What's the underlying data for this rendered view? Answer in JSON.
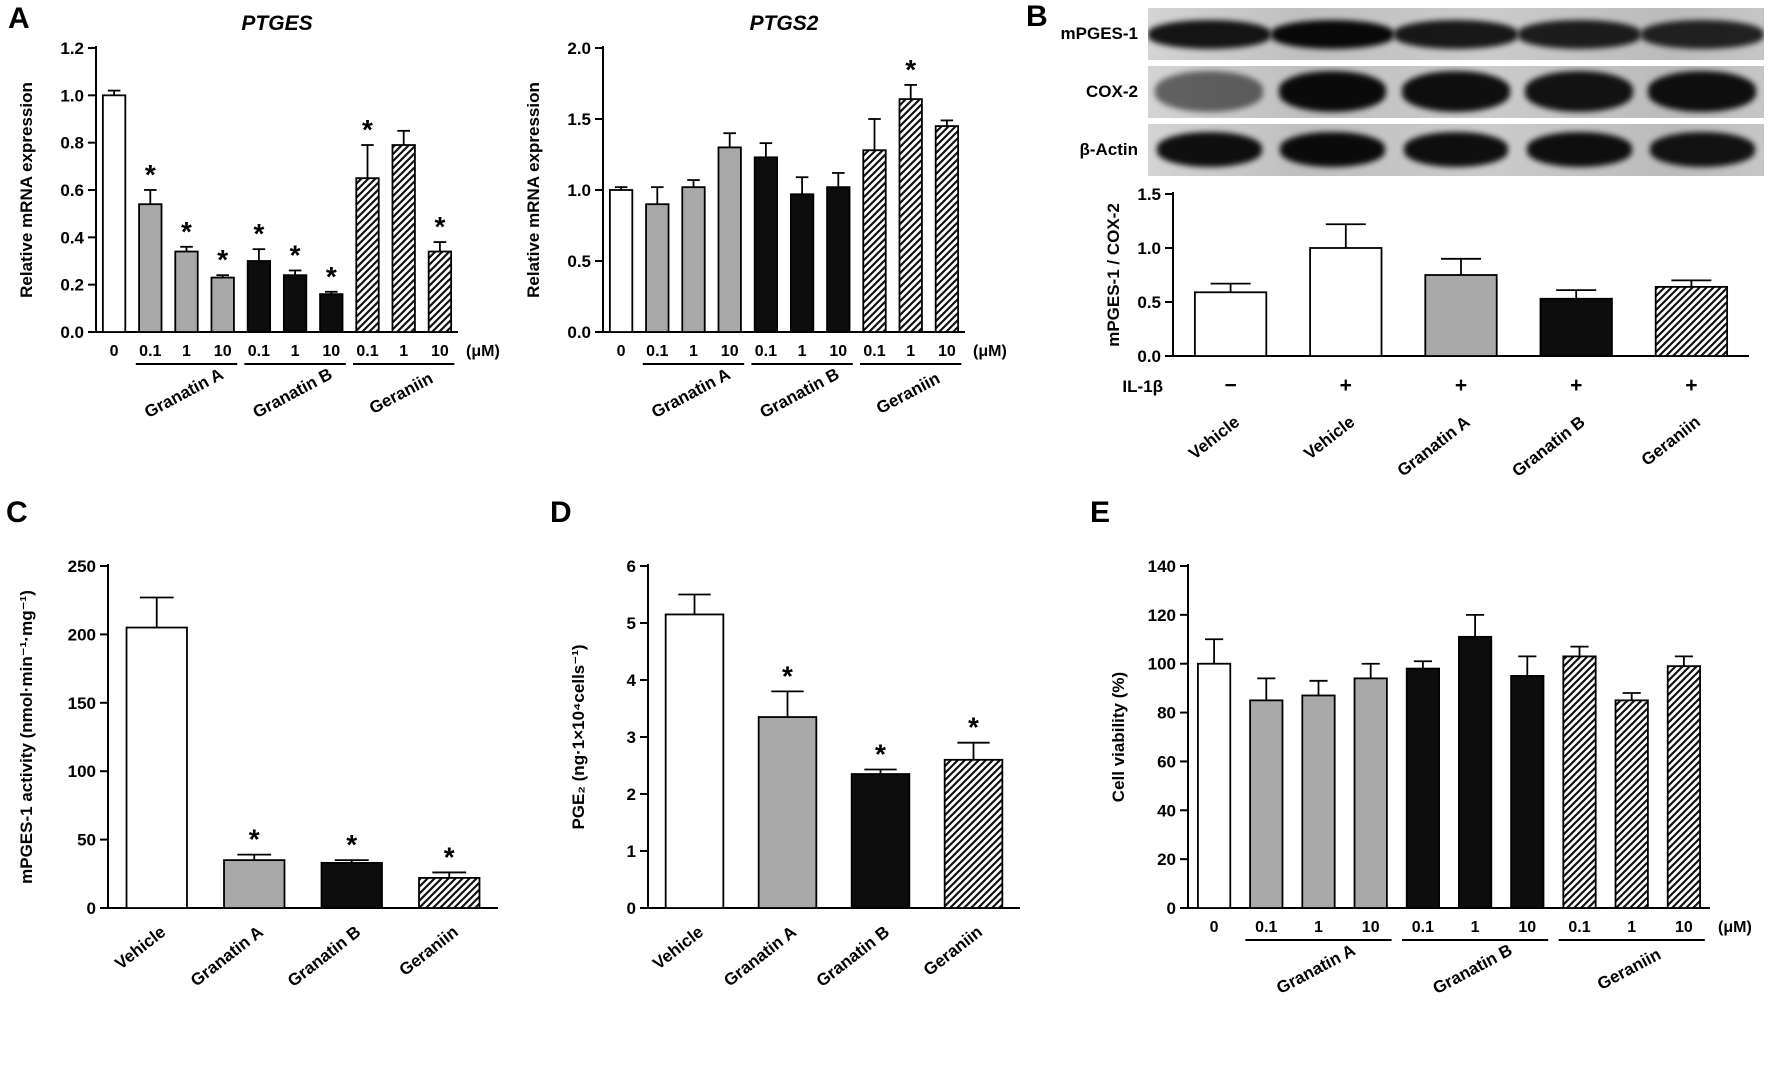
{
  "figure": {
    "panels": {
      "a": "A",
      "b": "B",
      "c": "C",
      "d": "D",
      "e": "E"
    },
    "blot": {
      "rows": [
        {
          "label": "mPGES-1",
          "lanes": [
            0.92,
            0.98,
            0.9,
            0.88,
            0.85
          ]
        },
        {
          "label": "COX-2",
          "lanes": [
            0.55,
            0.97,
            0.95,
            0.93,
            0.95
          ]
        },
        {
          "label": "β-Actin",
          "lanes": [
            0.95,
            0.97,
            0.95,
            0.95,
            0.93
          ]
        }
      ]
    }
  },
  "chart_data": [
    {
      "id": "ptges",
      "type": "bar",
      "title": "PTGES",
      "ylabel": "Relative mRNA expression",
      "ylim": [
        0,
        1.2
      ],
      "yticks": [
        {
          "v": 0,
          "label": "0.0"
        },
        {
          "v": 0.2,
          "label": "0.2"
        },
        {
          "v": 0.4,
          "label": "0.4"
        },
        {
          "v": 0.6,
          "label": "0.6"
        },
        {
          "v": 0.8,
          "label": "0.8"
        },
        {
          "v": 1.0,
          "label": "1.0"
        },
        {
          "v": 1.2,
          "label": "1.2"
        }
      ],
      "unit": "(μM)",
      "bars": [
        {
          "label": "0",
          "value": 1.0,
          "err": 0.02,
          "fill": "white",
          "sig": false
        },
        {
          "label": "0.1",
          "value": 0.54,
          "err": 0.06,
          "fill": "gray",
          "sig": true
        },
        {
          "label": "1",
          "value": 0.34,
          "err": 0.02,
          "fill": "gray",
          "sig": true
        },
        {
          "label": "10",
          "value": 0.23,
          "err": 0.01,
          "fill": "gray",
          "sig": true
        },
        {
          "label": "0.1",
          "value": 0.3,
          "err": 0.05,
          "fill": "black",
          "sig": true
        },
        {
          "label": "1",
          "value": 0.24,
          "err": 0.02,
          "fill": "black",
          "sig": true
        },
        {
          "label": "10",
          "value": 0.16,
          "err": 0.01,
          "fill": "black",
          "sig": true
        },
        {
          "label": "0.1",
          "value": 0.65,
          "err": 0.14,
          "fill": "hatch",
          "sig": true
        },
        {
          "label": "1",
          "value": 0.79,
          "err": 0.06,
          "fill": "hatch",
          "sig": false
        },
        {
          "label": "10",
          "value": 0.34,
          "err": 0.04,
          "fill": "hatch",
          "sig": true
        }
      ],
      "groups": [
        {
          "name": "Granatin A",
          "from": 1,
          "to": 3
        },
        {
          "name": "Granatin B",
          "from": 4,
          "to": 6
        },
        {
          "name": "Geraniin",
          "from": 7,
          "to": 9
        }
      ]
    },
    {
      "id": "ptgs2",
      "type": "bar",
      "title": "PTGS2",
      "ylabel": "Relative mRNA expression",
      "ylim": [
        0,
        2.0
      ],
      "yticks": [
        {
          "v": 0,
          "label": "0.0"
        },
        {
          "v": 0.5,
          "label": "0.5"
        },
        {
          "v": 1.0,
          "label": "1.0"
        },
        {
          "v": 1.5,
          "label": "1.5"
        },
        {
          "v": 2.0,
          "label": "2.0"
        }
      ],
      "unit": "(μM)",
      "bars": [
        {
          "label": "0",
          "value": 1.0,
          "err": 0.02,
          "fill": "white",
          "sig": false
        },
        {
          "label": "0.1",
          "value": 0.9,
          "err": 0.12,
          "fill": "gray",
          "sig": false
        },
        {
          "label": "1",
          "value": 1.02,
          "err": 0.05,
          "fill": "gray",
          "sig": false
        },
        {
          "label": "10",
          "value": 1.3,
          "err": 0.1,
          "fill": "gray",
          "sig": false
        },
        {
          "label": "0.1",
          "value": 1.23,
          "err": 0.1,
          "fill": "black",
          "sig": false
        },
        {
          "label": "1",
          "value": 0.97,
          "err": 0.12,
          "fill": "black",
          "sig": false
        },
        {
          "label": "10",
          "value": 1.02,
          "err": 0.1,
          "fill": "black",
          "sig": false
        },
        {
          "label": "0.1",
          "value": 1.28,
          "err": 0.22,
          "fill": "hatch",
          "sig": false
        },
        {
          "label": "1",
          "value": 1.64,
          "err": 0.1,
          "fill": "hatch",
          "sig": true
        },
        {
          "label": "10",
          "value": 1.45,
          "err": 0.04,
          "fill": "hatch",
          "sig": false
        }
      ],
      "groups": [
        {
          "name": "Granatin A",
          "from": 1,
          "to": 3
        },
        {
          "name": "Granatin B",
          "from": 4,
          "to": 6
        },
        {
          "name": "Geraniin",
          "from": 7,
          "to": 9
        }
      ]
    },
    {
      "id": "ratio",
      "type": "bar",
      "title": "",
      "ylabel": "mPGES-1 / COX-2",
      "ylim": [
        0,
        1.5
      ],
      "yticks": [
        {
          "v": 0,
          "label": "0.0"
        },
        {
          "v": 0.5,
          "label": "0.5"
        },
        {
          "v": 1.0,
          "label": "1.0"
        },
        {
          "v": 1.5,
          "label": "1.5"
        }
      ],
      "bars": [
        {
          "label": "Vehicle",
          "value": 0.59,
          "err": 0.08,
          "fill": "white",
          "sig": false
        },
        {
          "label": "Vehicle",
          "value": 1.0,
          "err": 0.22,
          "fill": "white",
          "sig": false
        },
        {
          "label": "Granatin A",
          "value": 0.75,
          "err": 0.15,
          "fill": "gray",
          "sig": false
        },
        {
          "label": "Granatin B",
          "value": 0.53,
          "err": 0.08,
          "fill": "black",
          "sig": false
        },
        {
          "label": "Geraniin",
          "value": 0.64,
          "err": 0.06,
          "fill": "hatch",
          "sig": false
        }
      ],
      "symbol_row": {
        "label": "IL-1β",
        "values": [
          "−",
          "+",
          "+",
          "+",
          "+"
        ]
      }
    },
    {
      "id": "activity",
      "type": "bar",
      "title": "",
      "ylabel": "mPGES-1 activity (nmol·min⁻¹·mg⁻¹)",
      "ylim": [
        0,
        250
      ],
      "yticks": [
        {
          "v": 0,
          "label": "0"
        },
        {
          "v": 50,
          "label": "50"
        },
        {
          "v": 100,
          "label": "100"
        },
        {
          "v": 150,
          "label": "150"
        },
        {
          "v": 200,
          "label": "200"
        },
        {
          "v": 250,
          "label": "250"
        }
      ],
      "bars": [
        {
          "label": "Vehicle",
          "value": 205,
          "err": 22,
          "fill": "white",
          "sig": false
        },
        {
          "label": "Granatin A",
          "value": 35,
          "err": 4,
          "fill": "gray",
          "sig": true
        },
        {
          "label": "Granatin B",
          "value": 33,
          "err": 2,
          "fill": "black",
          "sig": true
        },
        {
          "label": "Geraniin",
          "value": 22,
          "err": 4,
          "fill": "hatch",
          "sig": true
        }
      ]
    },
    {
      "id": "pge2",
      "type": "bar",
      "title": "",
      "ylabel": "PGE₂ (ng·1×10⁴cells⁻¹)",
      "ylim": [
        0,
        6
      ],
      "yticks": [
        {
          "v": 0,
          "label": "0"
        },
        {
          "v": 1,
          "label": "1"
        },
        {
          "v": 2,
          "label": "2"
        },
        {
          "v": 3,
          "label": "3"
        },
        {
          "v": 4,
          "label": "4"
        },
        {
          "v": 5,
          "label": "5"
        },
        {
          "v": 6,
          "label": "6"
        }
      ],
      "bars": [
        {
          "label": "Vehicle",
          "value": 5.15,
          "err": 0.35,
          "fill": "white",
          "sig": false
        },
        {
          "label": "Granatin A",
          "value": 3.35,
          "err": 0.45,
          "fill": "gray",
          "sig": true
        },
        {
          "label": "Granatin B",
          "value": 2.35,
          "err": 0.08,
          "fill": "black",
          "sig": true
        },
        {
          "label": "Geraniin",
          "value": 2.6,
          "err": 0.3,
          "fill": "hatch",
          "sig": true
        }
      ]
    },
    {
      "id": "viability",
      "type": "bar",
      "title": "",
      "ylabel": "Cell viability (%)",
      "ylim": [
        0,
        140
      ],
      "yticks": [
        {
          "v": 0,
          "label": "0"
        },
        {
          "v": 20,
          "label": "20"
        },
        {
          "v": 40,
          "label": "40"
        },
        {
          "v": 60,
          "label": "60"
        },
        {
          "v": 80,
          "label": "80"
        },
        {
          "v": 100,
          "label": "100"
        },
        {
          "v": 120,
          "label": "120"
        },
        {
          "v": 140,
          "label": "140"
        }
      ],
      "unit": "(μM)",
      "bars": [
        {
          "label": "0",
          "value": 100,
          "err": 10,
          "fill": "white",
          "sig": false
        },
        {
          "label": "0.1",
          "value": 85,
          "err": 9,
          "fill": "gray",
          "sig": false
        },
        {
          "label": "1",
          "value": 87,
          "err": 6,
          "fill": "gray",
          "sig": false
        },
        {
          "label": "10",
          "value": 94,
          "err": 6,
          "fill": "gray",
          "sig": false
        },
        {
          "label": "0.1",
          "value": 98,
          "err": 3,
          "fill": "black",
          "sig": false
        },
        {
          "label": "1",
          "value": 111,
          "err": 9,
          "fill": "black",
          "sig": false
        },
        {
          "label": "10",
          "value": 95,
          "err": 8,
          "fill": "black",
          "sig": false
        },
        {
          "label": "0.1",
          "value": 103,
          "err": 4,
          "fill": "hatch",
          "sig": false
        },
        {
          "label": "1",
          "value": 85,
          "err": 3,
          "fill": "hatch",
          "sig": false
        },
        {
          "label": "10",
          "value": 99,
          "err": 4,
          "fill": "hatch",
          "sig": false
        }
      ],
      "groups": [
        {
          "name": "Granatin A",
          "from": 1,
          "to": 3
        },
        {
          "name": "Granatin B",
          "from": 4,
          "to": 6
        },
        {
          "name": "Geraniin",
          "from": 7,
          "to": 9
        }
      ]
    }
  ]
}
